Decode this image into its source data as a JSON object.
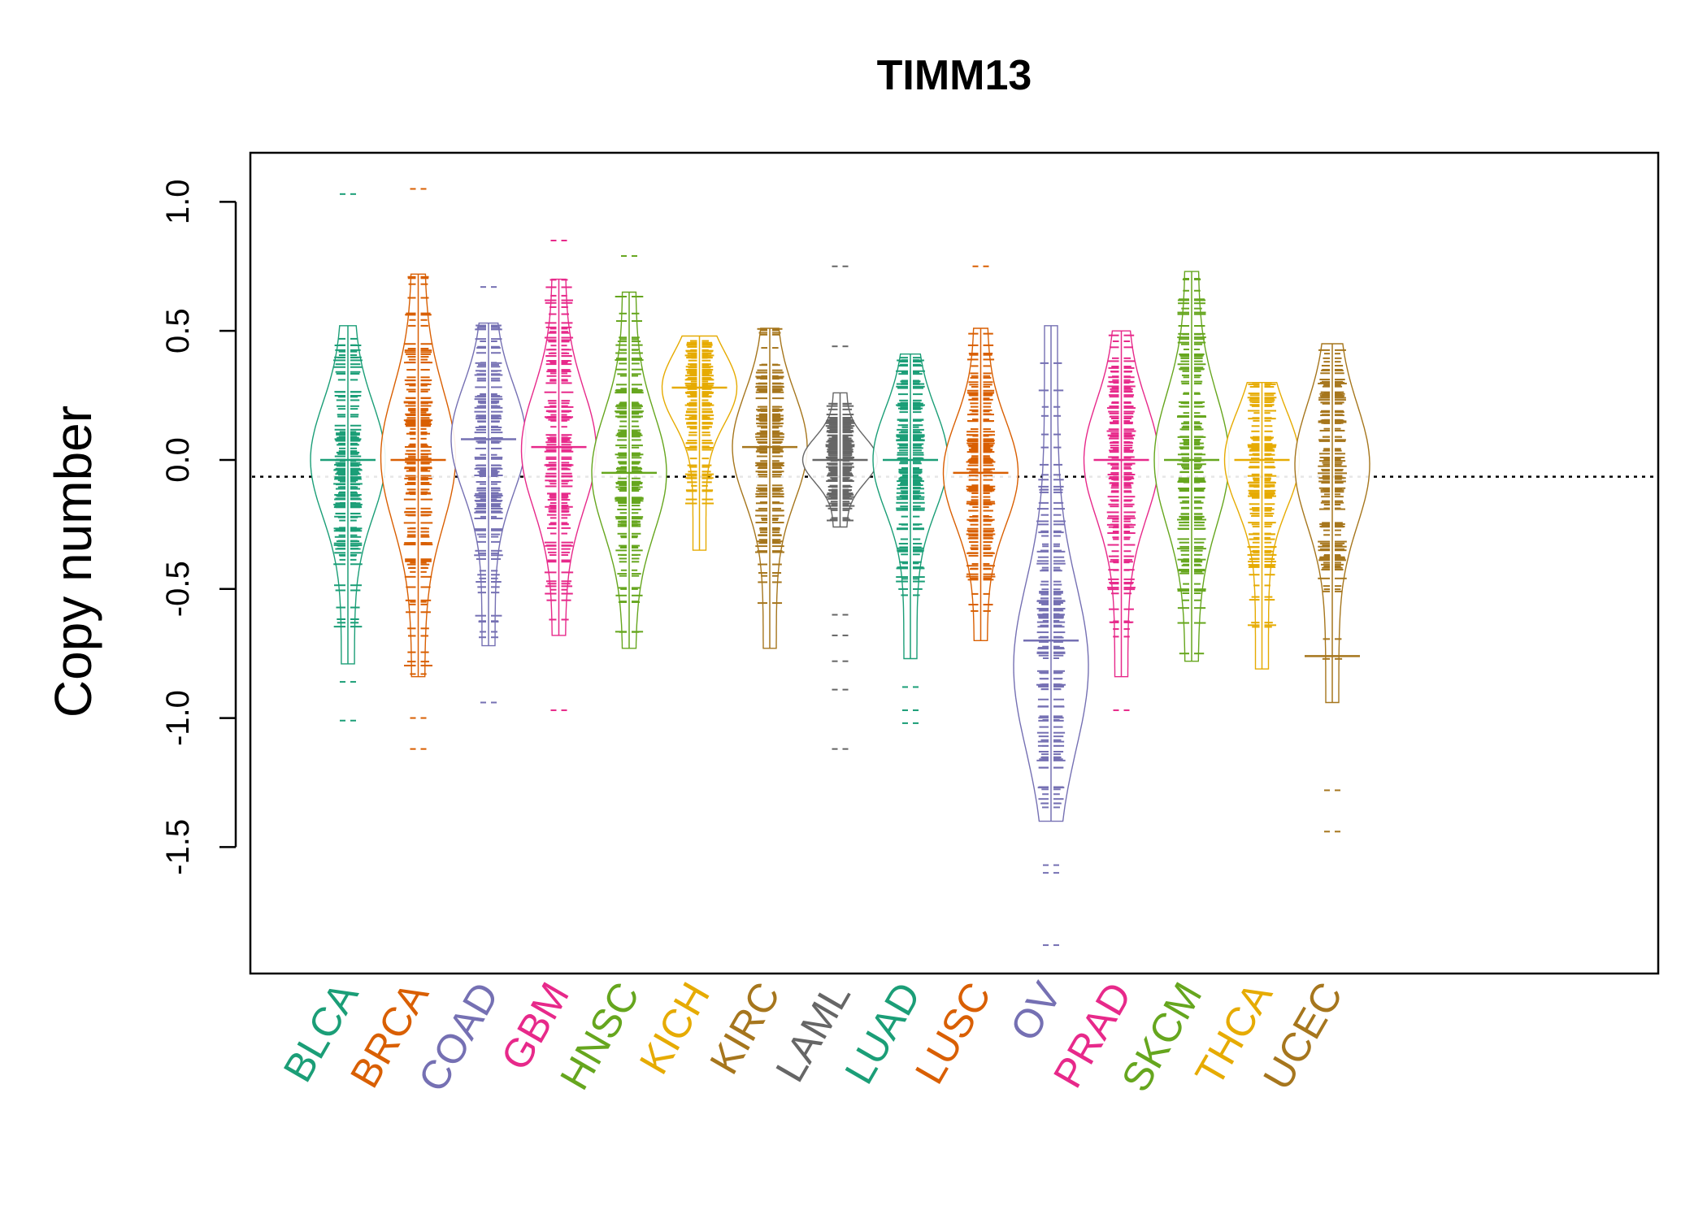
{
  "chart_data": {
    "type": "beanplot",
    "title": "TIMM13",
    "xlabel": "",
    "ylabel": "Copy number",
    "ylim": [
      -1.99,
      1.19
    ],
    "yticks": [
      1.0,
      0.5,
      0.0,
      -0.5,
      -1.0,
      -1.5
    ],
    "ytick_labels": [
      "1.0",
      "0.5",
      "0.0",
      "-0.5",
      "-1.0",
      "-1.5"
    ],
    "overall_mean": -0.065,
    "grid": false,
    "legend": "none",
    "series": [
      {
        "name": "BLCA",
        "color": "#1B9E77",
        "mean": 0.0,
        "median": 0.0,
        "min": -0.79,
        "max": 0.52,
        "outliers": [
          1.03,
          -0.86,
          -1.01
        ]
      },
      {
        "name": "BRCA",
        "color": "#D95F02",
        "mean": 0.0,
        "median": 0.01,
        "min": -0.84,
        "max": 0.72,
        "outliers": [
          1.05,
          -1.0,
          -1.12
        ]
      },
      {
        "name": "COAD",
        "color": "#7570B3",
        "mean": 0.08,
        "median": 0.08,
        "min": -0.72,
        "max": 0.53,
        "outliers": [
          0.67,
          -0.94
        ]
      },
      {
        "name": "GBM",
        "color": "#E7298A",
        "mean": 0.05,
        "median": 0.04,
        "min": -0.68,
        "max": 0.7,
        "outliers": [
          0.85,
          -0.97
        ]
      },
      {
        "name": "HNSC",
        "color": "#66A61E",
        "mean": -0.05,
        "median": -0.05,
        "min": -0.73,
        "max": 0.65,
        "outliers": [
          0.79
        ]
      },
      {
        "name": "KICH",
        "color": "#E6AB02",
        "mean": 0.28,
        "median": 0.28,
        "min": -0.35,
        "max": 0.48,
        "outliers": []
      },
      {
        "name": "KIRC",
        "color": "#A6761D",
        "mean": 0.05,
        "median": 0.05,
        "min": -0.73,
        "max": 0.51,
        "outliers": []
      },
      {
        "name": "LAML",
        "color": "#666666",
        "mean": 0.0,
        "median": 0.0,
        "min": -0.26,
        "max": 0.26,
        "outliers": [
          0.75,
          0.44,
          -0.6,
          -0.68,
          -0.78,
          -0.89,
          -1.12
        ]
      },
      {
        "name": "LUAD",
        "color": "#1B9E77",
        "mean": 0.0,
        "median": 0.0,
        "min": -0.77,
        "max": 0.41,
        "outliers": [
          -0.88,
          -0.97,
          -1.02
        ]
      },
      {
        "name": "LUSC",
        "color": "#D95F02",
        "mean": -0.05,
        "median": -0.05,
        "min": -0.7,
        "max": 0.51,
        "outliers": [
          0.75
        ]
      },
      {
        "name": "OV",
        "color": "#7570B3",
        "mean": -0.7,
        "median": -0.8,
        "min": -1.4,
        "max": 0.52,
        "outliers": [
          -1.57,
          -1.6,
          -1.88
        ]
      },
      {
        "name": "PRAD",
        "color": "#E7298A",
        "mean": 0.0,
        "median": 0.0,
        "min": -0.84,
        "max": 0.5,
        "outliers": [
          -0.97
        ]
      },
      {
        "name": "SKCM",
        "color": "#66A61E",
        "mean": 0.0,
        "median": 0.0,
        "min": -0.78,
        "max": 0.73,
        "outliers": []
      },
      {
        "name": "THCA",
        "color": "#E6AB02",
        "mean": 0.0,
        "median": 0.0,
        "min": -0.81,
        "max": 0.3,
        "outliers": []
      },
      {
        "name": "UCEC",
        "color": "#A6761D",
        "mean": -0.76,
        "median": -0.02,
        "min": -0.94,
        "max": 0.45,
        "outliers": [
          -1.28,
          -1.44
        ]
      }
    ]
  }
}
